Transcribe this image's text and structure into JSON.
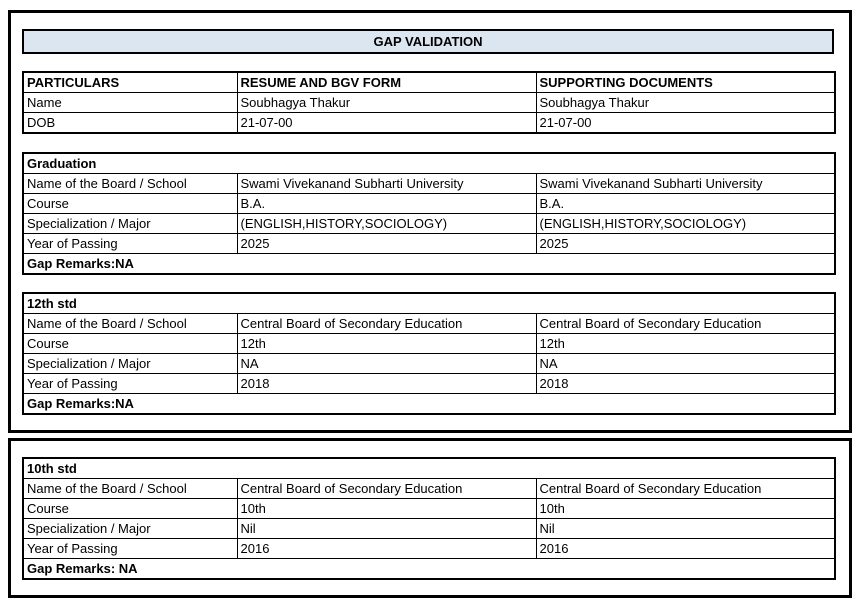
{
  "title": "GAP VALIDATION",
  "colors": {
    "header_fill": "#dce6f1",
    "border": "#000000",
    "background": "#ffffff"
  },
  "particulars": {
    "columns": [
      "PARTICULARS",
      "RESUME AND BGV FORM",
      "SUPPORTING DOCUMENTS"
    ],
    "rows": [
      {
        "label": "Name",
        "resume": "Soubhagya Thakur",
        "supporting": "Soubhagya Thakur"
      },
      {
        "label": "DOB",
        "resume": "21-07-00",
        "supporting": "21-07-00"
      }
    ]
  },
  "sections": [
    {
      "title": "Graduation",
      "rows": [
        {
          "label": "Name of the Board / School",
          "resume": "Swami Vivekanand Subharti University",
          "supporting": "Swami Vivekanand Subharti University"
        },
        {
          "label": "Course",
          "resume": "B.A.",
          "supporting": "B.A."
        },
        {
          "label": "Specialization / Major",
          "resume": "(ENGLISH,HISTORY,SOCIOLOGY)",
          "supporting": "(ENGLISH,HISTORY,SOCIOLOGY)"
        },
        {
          "label": "Year of Passing",
          "resume": "2025",
          "supporting": "2025"
        }
      ],
      "gap_remarks": "Gap Remarks:NA"
    },
    {
      "title": "12th std",
      "rows": [
        {
          "label": "Name of the Board / School",
          "resume": "Central Board of Secondary Education",
          "supporting": "Central Board of Secondary Education"
        },
        {
          "label": "Course",
          "resume": "12th",
          "supporting": "12th"
        },
        {
          "label": "Specialization / Major",
          "resume": "NA",
          "supporting": "NA"
        },
        {
          "label": "Year of Passing",
          "resume": "2018",
          "supporting": "2018"
        }
      ],
      "gap_remarks": "Gap Remarks:NA"
    },
    {
      "title": "10th std",
      "rows": [
        {
          "label": "Name of the Board / School",
          "resume": "Central Board of Secondary Education",
          "supporting": "Central Board of Secondary Education"
        },
        {
          "label": "Course",
          "resume": "10th",
          "supporting": "10th"
        },
        {
          "label": "Specialization / Major",
          "resume": "Nil",
          "supporting": "Nil"
        },
        {
          "label": "Year of Passing",
          "resume": "2016",
          "supporting": "2016"
        }
      ],
      "gap_remarks": "Gap Remarks: NA"
    }
  ]
}
